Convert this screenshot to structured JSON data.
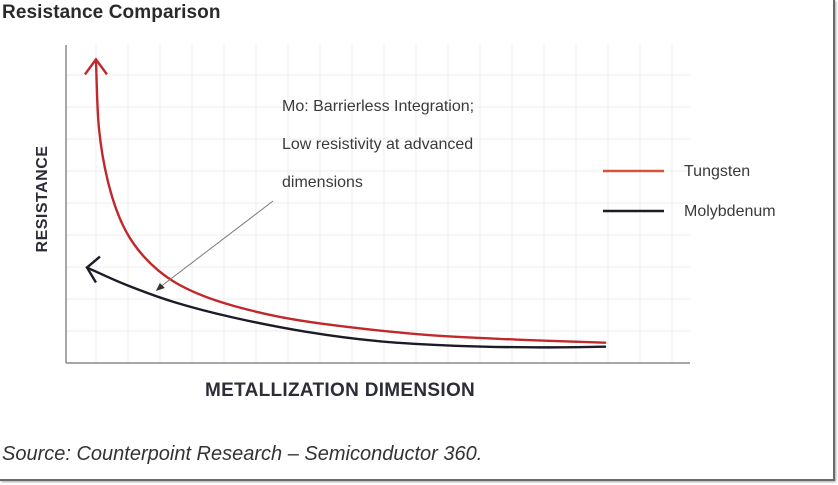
{
  "chart_data": {
    "type": "line",
    "title": "Resistance Comparison",
    "xlabel": "METALLIZATION DIMENSION",
    "ylabel": "RESISTANCE",
    "xlim": [
      0,
      10
    ],
    "ylim": [
      0,
      10
    ],
    "grid": true,
    "legend_position": "right",
    "tick_labels_shown": false,
    "series": [
      {
        "name": "Tungsten",
        "color": "#c0282b",
        "legend_color": "#d2553a",
        "arrow": "up",
        "points": [
          [
            0.5,
            9.7
          ],
          [
            0.55,
            7.5
          ],
          [
            0.7,
            5.8
          ],
          [
            0.95,
            4.4
          ],
          [
            1.3,
            3.4
          ],
          [
            1.8,
            2.6
          ],
          [
            2.5,
            2.0
          ],
          [
            3.5,
            1.5
          ],
          [
            4.5,
            1.2
          ],
          [
            6.0,
            0.9
          ],
          [
            7.5,
            0.75
          ],
          [
            9.0,
            0.65
          ]
        ]
      },
      {
        "name": "Molybdenum",
        "color": "#1c1c28",
        "legend_color": "#1c1c28",
        "arrow": "left",
        "points": [
          [
            0.35,
            3.05
          ],
          [
            1.0,
            2.5
          ],
          [
            1.8,
            1.95
          ],
          [
            2.8,
            1.45
          ],
          [
            4.0,
            1.0
          ],
          [
            5.2,
            0.7
          ],
          [
            6.5,
            0.55
          ],
          [
            7.8,
            0.5
          ],
          [
            9.0,
            0.52
          ]
        ]
      }
    ],
    "annotations": [
      {
        "lines": [
          "Mo: Barrierless Integration;",
          "Low resistivity at advanced",
          "dimensions"
        ],
        "points_to": [
          1.5,
          2.3
        ]
      }
    ]
  },
  "source": "Source: Counterpoint Research – Semiconductor 360."
}
